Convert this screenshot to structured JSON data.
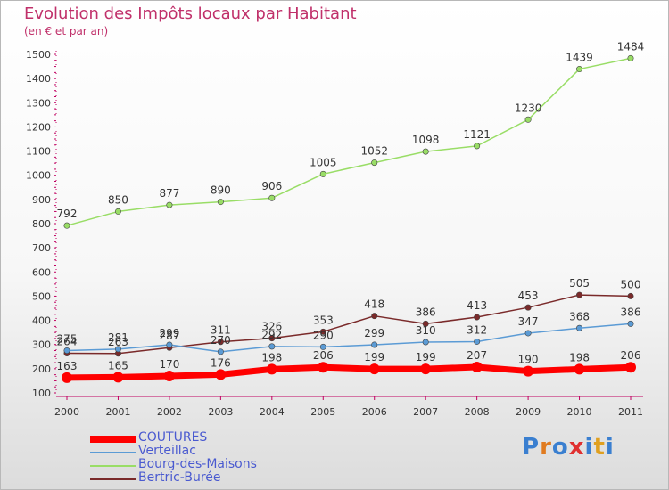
{
  "chart_data": {
    "type": "line",
    "title": "Evolution des Impôts locaux par Habitant",
    "subtitle": "(en € et par an)",
    "x": [
      "2000",
      "2001",
      "2002",
      "2003",
      "2004",
      "2005",
      "2006",
      "2007",
      "2008",
      "2009",
      "2010",
      "2011"
    ],
    "ylim": [
      100,
      1500
    ],
    "yticks": [
      100,
      200,
      300,
      400,
      500,
      600,
      700,
      800,
      900,
      1000,
      1100,
      1200,
      1300,
      1400,
      1500
    ],
    "grid": false,
    "legend_position": "bottom-left",
    "series": [
      {
        "name": "COUTURES",
        "color": "#ff0000",
        "values": [
          163,
          165,
          170,
          176,
          198,
          206,
          199,
          199,
          207,
          190,
          198,
          206
        ]
      },
      {
        "name": "Verteillac",
        "color": "#5b9bd5",
        "values": [
          275,
          281,
          299,
          270,
          292,
          290,
          299,
          310,
          312,
          347,
          368,
          386
        ]
      },
      {
        "name": "Bourg-des-Maisons",
        "color": "#99dd66",
        "values": [
          792,
          850,
          877,
          890,
          906,
          1005,
          1052,
          1098,
          1121,
          1230,
          1439,
          1484
        ]
      },
      {
        "name": "Bertric-Burée",
        "color": "#7a2a2a",
        "values": [
          264,
          263,
          287,
          311,
          326,
          353,
          418,
          386,
          413,
          453,
          505,
          500
        ]
      }
    ]
  },
  "logo": {
    "text": "Proxiti",
    "letter_colors": [
      "#3a7fd0",
      "#e07b20",
      "#3a7fd0",
      "#e03030",
      "#3a7fd0",
      "#e0a020",
      "#3a7fd0"
    ]
  }
}
